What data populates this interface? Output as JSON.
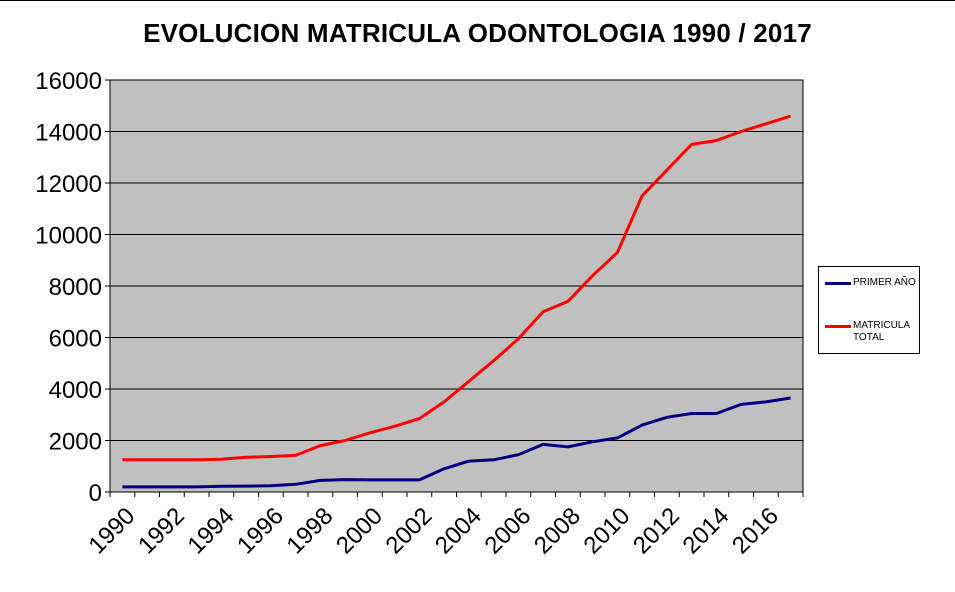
{
  "chart_data": {
    "type": "line",
    "title": "EVOLUCION MATRICULA ODONTOLOGIA 1990 / 2017",
    "xlabel": "",
    "ylabel": "",
    "x": [
      1990,
      1991,
      1992,
      1993,
      1994,
      1995,
      1996,
      1997,
      1998,
      1999,
      2000,
      2001,
      2002,
      2003,
      2004,
      2005,
      2006,
      2007,
      2008,
      2009,
      2010,
      2011,
      2012,
      2013,
      2014,
      2015,
      2016,
      2017
    ],
    "x_tick_labels": [
      "1990",
      "1992",
      "1994",
      "1996",
      "1998",
      "2000",
      "2002",
      "2004",
      "2006",
      "2008",
      "2010",
      "2012",
      "2014",
      "2016"
    ],
    "ylim": [
      0,
      16000
    ],
    "y_ticks": [
      0,
      2000,
      4000,
      6000,
      8000,
      10000,
      12000,
      14000,
      16000
    ],
    "grid": "horizontal",
    "legend_position": "right",
    "plot_background": "#c0c0c0",
    "series": [
      {
        "name": "PRIMER AÑO",
        "color": "#000080",
        "values": [
          200,
          200,
          200,
          200,
          220,
          230,
          240,
          300,
          450,
          480,
          470,
          470,
          470,
          900,
          1200,
          1250,
          1450,
          1850,
          1750,
          1950,
          2100,
          2600,
          2900,
          3050,
          3050,
          3400,
          3500,
          3650
        ]
      },
      {
        "name": "MATRICULA TOTAL",
        "color": "#ff0000",
        "values": [
          1250,
          1250,
          1250,
          1250,
          1270,
          1350,
          1380,
          1420,
          1800,
          2000,
          2300,
          2550,
          2850,
          3500,
          4300,
          5100,
          5950,
          7000,
          7400,
          8400,
          9300,
          11500,
          12500,
          13500,
          13650,
          14000,
          14300,
          14600
        ]
      }
    ]
  }
}
